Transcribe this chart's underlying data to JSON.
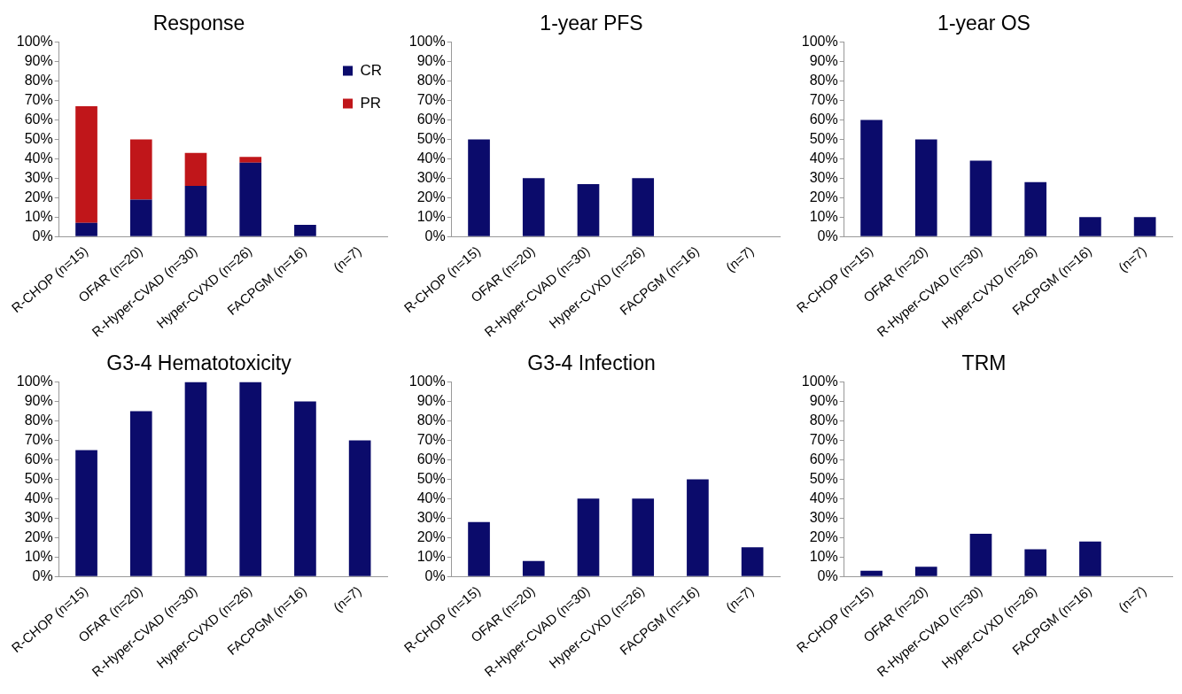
{
  "chart_data": [
    {
      "type": "bar",
      "title": "Response",
      "stacked": true,
      "legend": "top right",
      "grid": false,
      "categories": [
        "R-CHOP (n=15)",
        "OFAR (n=20)",
        "R-Hyper-CVAD (n=30)",
        "Hyper-CVXD (n=26)",
        "FACPGM (n=16)",
        "(n=7)"
      ],
      "ylim": [
        0,
        100
      ],
      "yticks": [
        {
          "value": 0,
          "label": "0%"
        },
        {
          "value": 10,
          "label": "10%"
        },
        {
          "value": 20,
          "label": "20%"
        },
        {
          "value": 30,
          "label": "30%"
        },
        {
          "value": 40,
          "label": "40%"
        },
        {
          "value": 50,
          "label": "50%"
        },
        {
          "value": 60,
          "label": "60%"
        },
        {
          "value": 70,
          "label": "70%"
        },
        {
          "value": 80,
          "label": "80%"
        },
        {
          "value": 90,
          "label": "90%"
        },
        {
          "value": 100,
          "label": "100%"
        }
      ],
      "series": [
        {
          "name": "CR",
          "color": "#0b0b6b",
          "values": [
            7,
            19,
            26,
            38,
            6,
            null
          ]
        },
        {
          "name": "PR",
          "color": "#c0161a",
          "values": [
            60,
            31,
            17,
            3,
            null,
            null
          ]
        }
      ]
    },
    {
      "type": "bar",
      "title": "1-year PFS",
      "grid": false,
      "categories": [
        "R-CHOP (n=15)",
        "OFAR (n=20)",
        "R-Hyper-CVAD (n=30)",
        "Hyper-CVXD (n=26)",
        "FACPGM (n=16)",
        "(n=7)"
      ],
      "ylim": [
        0,
        100
      ],
      "yticks": [
        {
          "value": 0,
          "label": "0%"
        },
        {
          "value": 10,
          "label": "10%"
        },
        {
          "value": 20,
          "label": "20%"
        },
        {
          "value": 30,
          "label": "30%"
        },
        {
          "value": 40,
          "label": "40%"
        },
        {
          "value": 50,
          "label": "50%"
        },
        {
          "value": 60,
          "label": "60%"
        },
        {
          "value": 70,
          "label": "70%"
        },
        {
          "value": 80,
          "label": "80%"
        },
        {
          "value": 90,
          "label": "90%"
        },
        {
          "value": 100,
          "label": "100%"
        }
      ],
      "series": [
        {
          "color": "#0b0b6b",
          "values": [
            50,
            30,
            27,
            30,
            null,
            null
          ]
        }
      ]
    },
    {
      "type": "bar",
      "title": "1-year OS",
      "grid": false,
      "categories": [
        "R-CHOP (n=15)",
        "OFAR (n=20)",
        "R-Hyper-CVAD (n=30)",
        "Hyper-CVXD (n=26)",
        "FACPGM (n=16)",
        "(n=7)"
      ],
      "ylim": [
        0,
        100
      ],
      "yticks": [
        {
          "value": 0,
          "label": "0%"
        },
        {
          "value": 10,
          "label": "10%"
        },
        {
          "value": 20,
          "label": "20%"
        },
        {
          "value": 30,
          "label": "30%"
        },
        {
          "value": 40,
          "label": "40%"
        },
        {
          "value": 50,
          "label": "50%"
        },
        {
          "value": 60,
          "label": "60%"
        },
        {
          "value": 70,
          "label": "70%"
        },
        {
          "value": 80,
          "label": "80%"
        },
        {
          "value": 90,
          "label": "90%"
        },
        {
          "value": 100,
          "label": "100%"
        }
      ],
      "series": [
        {
          "color": "#0b0b6b",
          "values": [
            60,
            50,
            39,
            28,
            10,
            10
          ]
        }
      ]
    },
    {
      "type": "bar",
      "title": "G3-4 Hematotoxicity",
      "grid": false,
      "categories": [
        "R-CHOP (n=15)",
        "OFAR (n=20)",
        "R-Hyper-CVAD (n=30)",
        "Hyper-CVXD (n=26)",
        "FACPGM (n=16)",
        "(n=7)"
      ],
      "ylim": [
        0,
        100
      ],
      "yticks": [
        {
          "value": 0,
          "label": "0%"
        },
        {
          "value": 10,
          "label": "10%"
        },
        {
          "value": 20,
          "label": "20%"
        },
        {
          "value": 30,
          "label": "30%"
        },
        {
          "value": 40,
          "label": "40%"
        },
        {
          "value": 50,
          "label": "50%"
        },
        {
          "value": 60,
          "label": "60%"
        },
        {
          "value": 70,
          "label": "70%"
        },
        {
          "value": 80,
          "label": "80%"
        },
        {
          "value": 90,
          "label": "90%"
        },
        {
          "value": 100,
          "label": "100%"
        }
      ],
      "series": [
        {
          "color": "#0b0b6b",
          "values": [
            65,
            85,
            100,
            100,
            90,
            70
          ]
        }
      ]
    },
    {
      "type": "bar",
      "title": "G3-4 Infection",
      "grid": false,
      "categories": [
        "R-CHOP (n=15)",
        "OFAR (n=20)",
        "R-Hyper-CVAD (n=30)",
        "Hyper-CVXD (n=26)",
        "FACPGM (n=16)",
        "(n=7)"
      ],
      "ylim": [
        0,
        100
      ],
      "yticks": [
        {
          "value": 0,
          "label": "0%"
        },
        {
          "value": 10,
          "label": "10%"
        },
        {
          "value": 20,
          "label": "20%"
        },
        {
          "value": 30,
          "label": "30%"
        },
        {
          "value": 40,
          "label": "40%"
        },
        {
          "value": 50,
          "label": "50%"
        },
        {
          "value": 60,
          "label": "60%"
        },
        {
          "value": 70,
          "label": "70%"
        },
        {
          "value": 80,
          "label": "80%"
        },
        {
          "value": 90,
          "label": "90%"
        },
        {
          "value": 100,
          "label": "100%"
        }
      ],
      "series": [
        {
          "color": "#0b0b6b",
          "values": [
            28,
            8,
            40,
            40,
            50,
            15
          ]
        }
      ]
    },
    {
      "type": "bar",
      "title": "TRM",
      "grid": false,
      "categories": [
        "R-CHOP (n=15)",
        "OFAR (n=20)",
        "R-Hyper-CVAD (n=30)",
        "Hyper-CVXD (n=26)",
        "FACPGM (n=16)",
        "(n=7)"
      ],
      "ylim": [
        0,
        100
      ],
      "yticks": [
        {
          "value": 0,
          "label": "0%"
        },
        {
          "value": 10,
          "label": "10%"
        },
        {
          "value": 20,
          "label": "20%"
        },
        {
          "value": 30,
          "label": "30%"
        },
        {
          "value": 40,
          "label": "40%"
        },
        {
          "value": 50,
          "label": "50%"
        },
        {
          "value": 60,
          "label": "60%"
        },
        {
          "value": 70,
          "label": "70%"
        },
        {
          "value": 80,
          "label": "80%"
        },
        {
          "value": 90,
          "label": "90%"
        },
        {
          "value": 100,
          "label": "100%"
        }
      ],
      "series": [
        {
          "color": "#0b0b6b",
          "values": [
            3,
            5,
            22,
            14,
            18,
            null
          ]
        }
      ]
    }
  ]
}
